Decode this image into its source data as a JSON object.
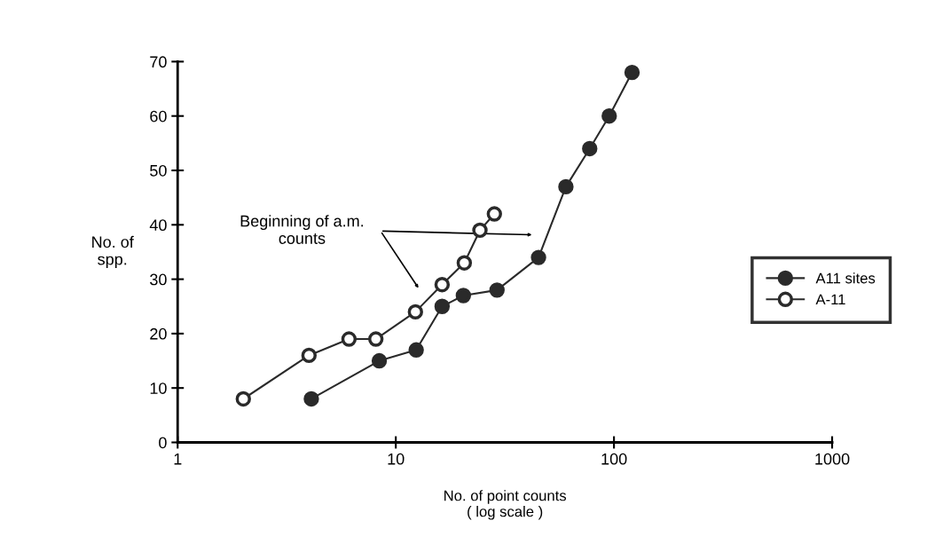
{
  "chart_data": {
    "type": "line",
    "xlabel": "No. of point counts\n( log scale )",
    "ylabel": "No. of\nspp.",
    "log": "x",
    "xlim": [
      1,
      1000
    ],
    "xticks": [
      1,
      10,
      100,
      1000
    ],
    "ylim": [
      0,
      70
    ],
    "yticks": [
      0,
      10,
      20,
      30,
      40,
      50,
      60,
      70
    ],
    "grid": false,
    "legend": "right",
    "marker": "circle",
    "line_style": "solid",
    "series": [
      {
        "name": "A11 sites",
        "color": "#2a2a2a",
        "x": [
          4.1,
          8.4,
          12.4,
          16.3,
          20.4,
          29.1,
          45.1,
          60.2,
          77.4,
          95.1,
          121
        ],
        "values": [
          8,
          15,
          17,
          25,
          27,
          28,
          34,
          47,
          54,
          60,
          68
        ]
      },
      {
        "name": "A-11",
        "color": "#ffffff",
        "x": [
          2.0,
          4.0,
          6.1,
          8.1,
          12.3,
          16.3,
          20.6,
          24.3,
          28.3
        ],
        "values": [
          8,
          16,
          19,
          19,
          24,
          29,
          33,
          39,
          42
        ]
      }
    ],
    "annotations": [
      "Beginning of a.m.\ncounts"
    ]
  }
}
